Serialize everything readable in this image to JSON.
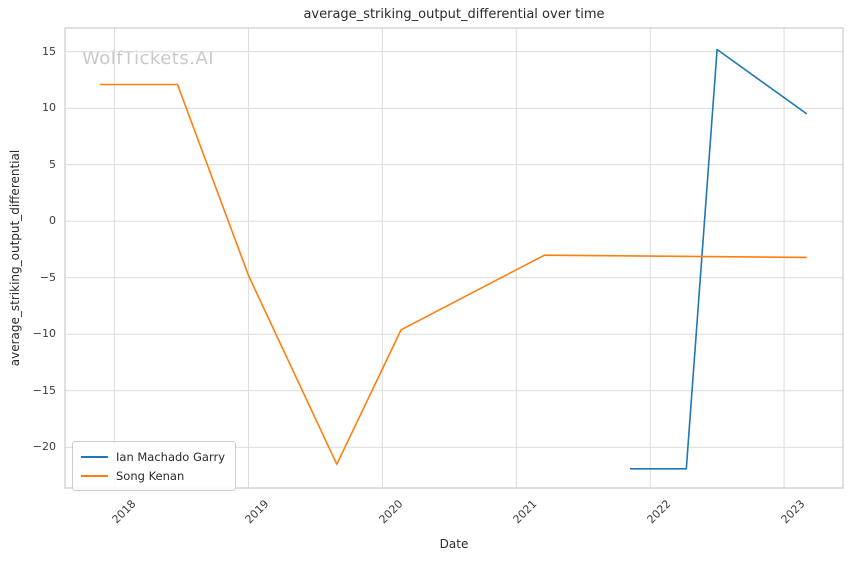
{
  "watermark": "WolfTickets.AI",
  "colors": {
    "grid": "#dcdcdc",
    "spine": "#cccccc",
    "text": "#2b2b2b",
    "tick_text": "#3c3c3c",
    "watermark": "#c9c9c9",
    "series_blue": "#1f77b4",
    "series_orange": "#ff7f0e"
  },
  "chart_data": {
    "type": "line",
    "title": "average_striking_output_differential over time",
    "xlabel": "Date",
    "ylabel": "average_striking_output_differential",
    "grid": true,
    "legend_position": "lower left",
    "xlim": [
      2017.63,
      2023.44
    ],
    "ylim": [
      -23.6,
      17.1
    ],
    "x_ticks": [
      {
        "value": 2018,
        "label": "2018"
      },
      {
        "value": 2019,
        "label": "2019"
      },
      {
        "value": 2020,
        "label": "2020"
      },
      {
        "value": 2021,
        "label": "2021"
      },
      {
        "value": 2022,
        "label": "2022"
      },
      {
        "value": 2023,
        "label": "2023"
      }
    ],
    "y_ticks": [
      {
        "value": 15,
        "label": "15"
      },
      {
        "value": 10,
        "label": "10"
      },
      {
        "value": 5,
        "label": "5"
      },
      {
        "value": 0,
        "label": "0"
      },
      {
        "value": -5,
        "label": "−5"
      },
      {
        "value": -10,
        "label": "−10"
      },
      {
        "value": -15,
        "label": "−15"
      },
      {
        "value": -20,
        "label": "−20"
      }
    ],
    "series": [
      {
        "name": "Ian Machado Garry",
        "color": "#1f77b4",
        "points": [
          [
            2021.85,
            -21.9
          ],
          [
            2022.27,
            -21.9
          ],
          [
            2022.5,
            15.2
          ],
          [
            2023.17,
            9.5
          ]
        ]
      },
      {
        "name": "Song Kenan",
        "color": "#ff7f0e",
        "points": [
          [
            2017.89,
            12.1
          ],
          [
            2018.47,
            12.1
          ],
          [
            2019.0,
            -4.8
          ],
          [
            2019.66,
            -21.5
          ],
          [
            2020.14,
            -9.6
          ],
          [
            2021.21,
            -3.0
          ],
          [
            2023.17,
            -3.2
          ]
        ]
      }
    ]
  }
}
